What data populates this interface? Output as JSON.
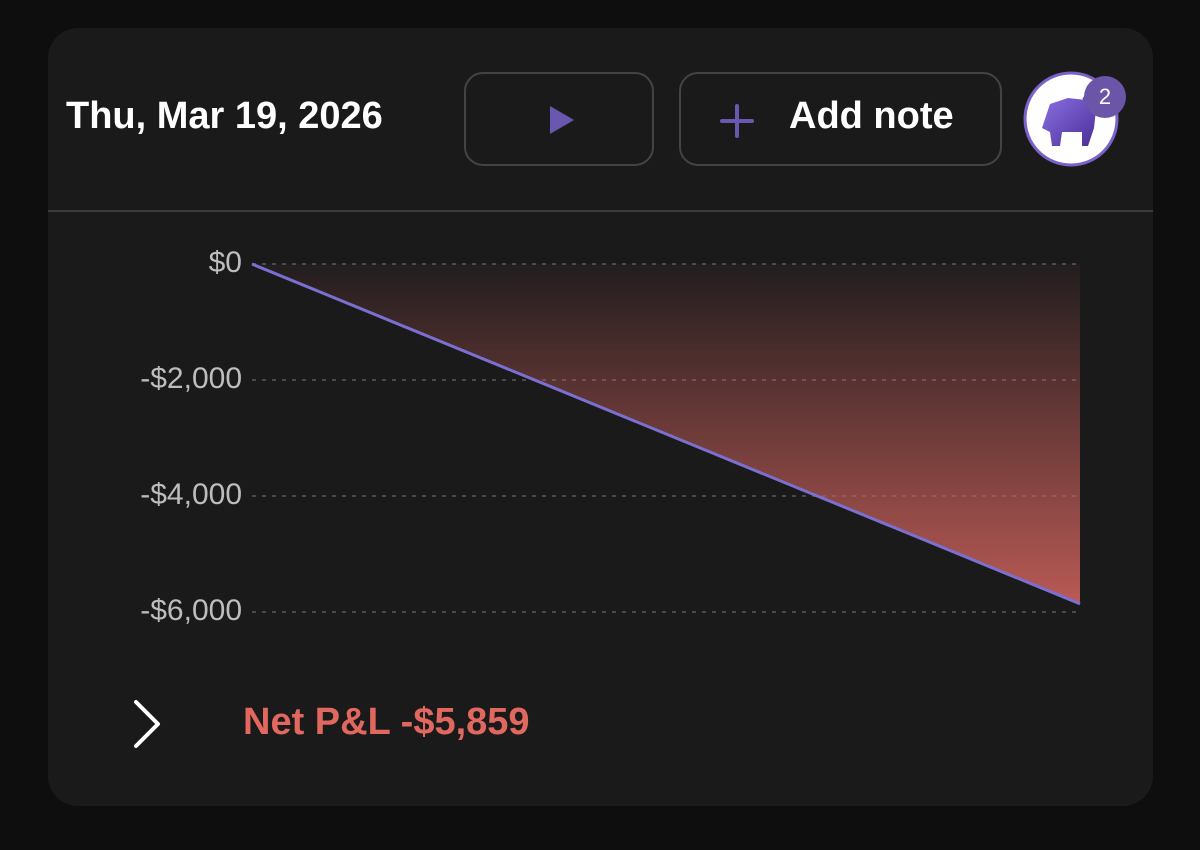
{
  "header": {
    "date": "Thu, Mar 19, 2026",
    "add_note": "Add note",
    "badge": "2"
  },
  "chart_data": {
    "type": "area-line",
    "categories": [
      null,
      null
    ],
    "values": [
      0,
      -5859
    ],
    "color": "#7b6fd0",
    "ylim": [
      -6000,
      0
    ],
    "yticks": [
      {
        "value": 0,
        "label": "$0"
      },
      {
        "value": -2000,
        "label": "-$2,000"
      },
      {
        "value": -4000,
        "label": "-$4,000"
      },
      {
        "value": -6000,
        "label": "-$6,000"
      }
    ],
    "grid": true
  },
  "footer": {
    "label": "Net P&L -$5,859"
  }
}
